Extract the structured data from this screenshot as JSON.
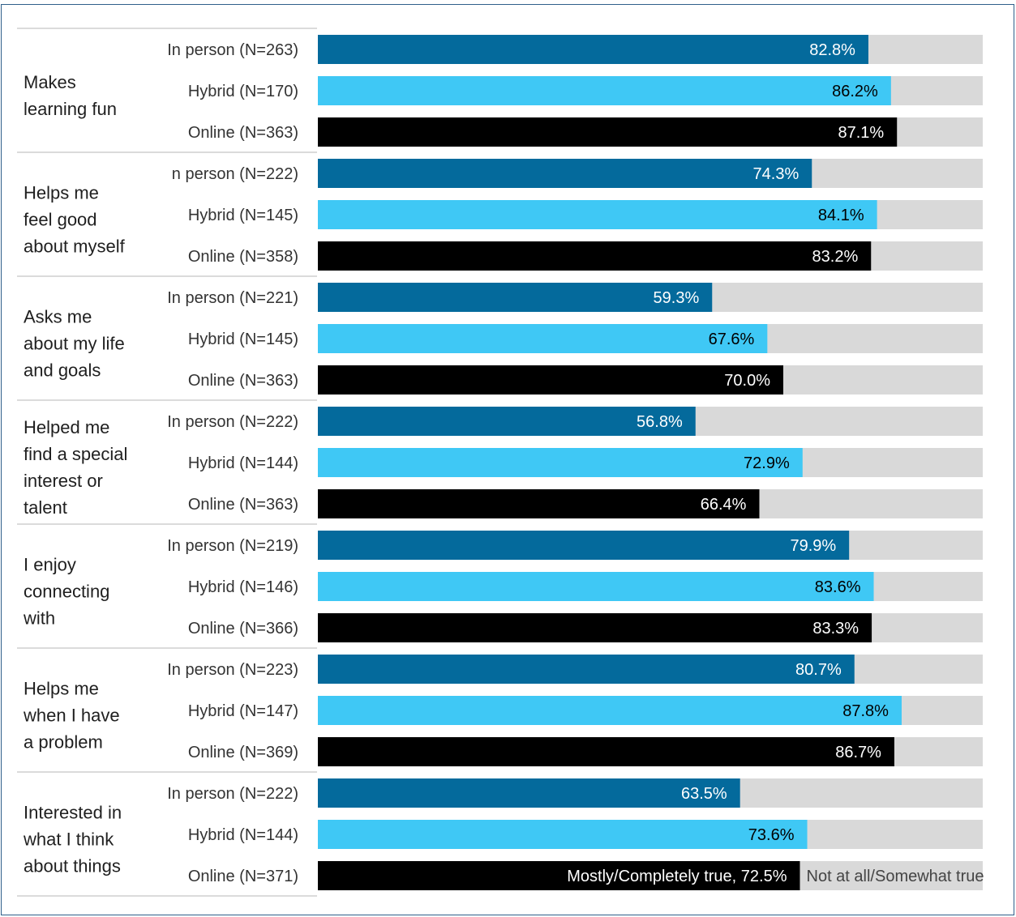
{
  "chart_data": {
    "type": "bar",
    "orientation": "horizontal",
    "stacked_to_100": true,
    "xlim": [
      0,
      100
    ],
    "value_format": "{v}%",
    "colors": {
      "in_person": "#046a9c",
      "hybrid": "#3fc8f5",
      "online": "#000000",
      "remainder": "#d9d9d9"
    },
    "groups": [
      {
        "label": "Makes learning fun",
        "label_lines": [
          "Makes",
          "learning fun"
        ],
        "bars": [
          {
            "label": "In person (N=263)",
            "mode": "in_person",
            "value": 82.8
          },
          {
            "label": "Hybrid (N=170)",
            "mode": "hybrid",
            "value": 86.2
          },
          {
            "label": "Online (N=363)",
            "mode": "online",
            "value": 87.1
          }
        ]
      },
      {
        "label": "Helps me feel good about myself",
        "label_lines": [
          "Helps me",
          "feel good",
          "about myself"
        ],
        "bars": [
          {
            "label": "n person (N=222)",
            "mode": "in_person",
            "value": 74.3
          },
          {
            "label": "Hybrid (N=145)",
            "mode": "hybrid",
            "value": 84.1
          },
          {
            "label": "Online (N=358)",
            "mode": "online",
            "value": 83.2
          }
        ]
      },
      {
        "label": "Asks me about my life and goals",
        "label_lines": [
          "Asks me",
          "about my life",
          "and goals"
        ],
        "bars": [
          {
            "label": "In person (N=221)",
            "mode": "in_person",
            "value": 59.3
          },
          {
            "label": "Hybrid (N=145)",
            "mode": "hybrid",
            "value": 67.6
          },
          {
            "label": "Online (N=363)",
            "mode": "online",
            "value": 70.0
          }
        ]
      },
      {
        "label": "Helped me find a special interest or talent",
        "label_lines": [
          "Helped me",
          "find a special",
          "interest or",
          "talent"
        ],
        "bars": [
          {
            "label": "In person (N=222)",
            "mode": "in_person",
            "value": 56.8
          },
          {
            "label": "Hybrid (N=144)",
            "mode": "hybrid",
            "value": 72.9
          },
          {
            "label": "Online (N=363)",
            "mode": "online",
            "value": 66.4
          }
        ]
      },
      {
        "label": "I enjoy connecting with",
        "label_lines": [
          "I enjoy",
          "connecting",
          "with"
        ],
        "bars": [
          {
            "label": "In person (N=219)",
            "mode": "in_person",
            "value": 79.9
          },
          {
            "label": "Hybrid (N=146)",
            "mode": "hybrid",
            "value": 83.6
          },
          {
            "label": "Online (N=366)",
            "mode": "online",
            "value": 83.3
          }
        ]
      },
      {
        "label": "Helps me when I have a problem",
        "label_lines": [
          "Helps me",
          "when I have",
          "a problem"
        ],
        "bars": [
          {
            "label": "In person (N=223)",
            "mode": "in_person",
            "value": 80.7
          },
          {
            "label": "Hybrid (N=147)",
            "mode": "hybrid",
            "value": 87.8
          },
          {
            "label": "Online (N=369)",
            "mode": "online",
            "value": 86.7
          }
        ]
      },
      {
        "label": "Interested in what I think about things",
        "label_lines": [
          "Interested in",
          "what I think",
          "about things"
        ],
        "bars": [
          {
            "label": "In person (N=222)",
            "mode": "in_person",
            "value": 63.5
          },
          {
            "label": "Hybrid (N=144)",
            "mode": "hybrid",
            "value": 73.6
          },
          {
            "label": "Online (N=371)",
            "mode": "online",
            "value": 72.5,
            "value_label": "Mostly/Completely true, 72.5%",
            "remainder_label": "Not at all/Somewhat true"
          }
        ]
      }
    ]
  }
}
